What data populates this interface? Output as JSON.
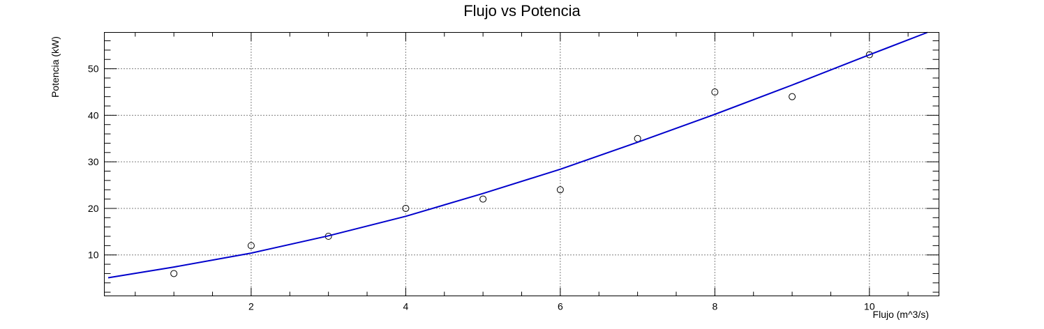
{
  "chart_data": {
    "type": "scatter",
    "title": "Flujo vs Potencia",
    "xlabel": "Flujo (m^3/s)",
    "ylabel": "Potencia (kW)",
    "xlim": [
      0.1,
      10.9
    ],
    "ylim": [
      1.2,
      57.8
    ],
    "xticks": [
      2,
      4,
      6,
      8,
      10
    ],
    "yticks": [
      10,
      20,
      30,
      40,
      50
    ],
    "grid": true,
    "series": [
      {
        "type": "scatter",
        "marker": "open-circle",
        "color": "#000000",
        "x": [
          1,
          2,
          3,
          4,
          5,
          6,
          7,
          8,
          9,
          10
        ],
        "y": [
          6,
          12,
          14,
          20,
          22,
          24,
          35,
          45,
          44,
          53
        ]
      },
      {
        "type": "line",
        "color": "#0000cc",
        "x": [
          0.15,
          1,
          2,
          3,
          4,
          5,
          6,
          7,
          8,
          9,
          10,
          10.75
        ],
        "y": [
          5.1,
          7.4,
          10.4,
          14.1,
          18.3,
          23.2,
          28.4,
          34.2,
          40.2,
          46.5,
          53.0,
          57.8
        ]
      }
    ]
  }
}
